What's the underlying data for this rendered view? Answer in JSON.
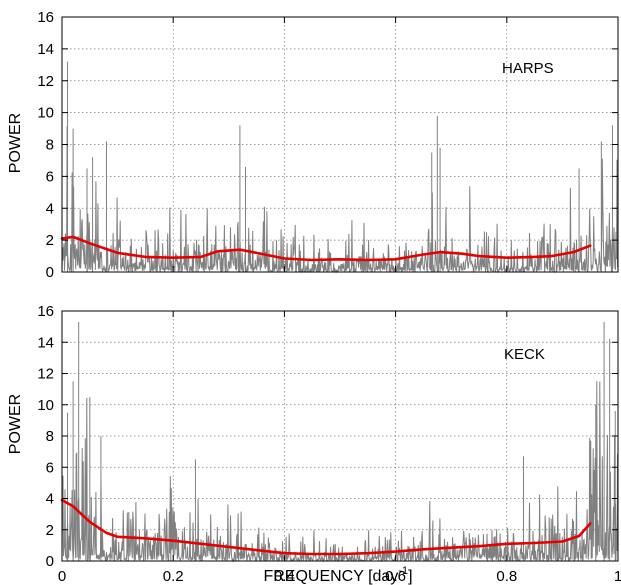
{
  "colors": {
    "periodogram": "#808080",
    "smoothed": "#e60000"
  },
  "chart_data": [
    {
      "type": "line",
      "panel_label": "HARPS",
      "xlabel": "",
      "ylabel": "POWER",
      "xlim": [
        0,
        1
      ],
      "ylim": [
        0,
        16
      ],
      "xticks": [
        0,
        0.2,
        0.4,
        0.6,
        0.8,
        1
      ],
      "yticks": [
        0,
        2,
        4,
        6,
        8,
        10,
        12,
        14,
        16
      ],
      "grid": true,
      "series": [
        {
          "role": "periodogram",
          "style": "gray line, dense noise",
          "x_range": [
            0,
            1
          ],
          "peaks": [
            {
              "x": 0.0,
              "y": 12.3
            },
            {
              "x": 0.01,
              "y": 13.2
            },
            {
              "x": 0.02,
              "y": 9.0
            },
            {
              "x": 0.045,
              "y": 6.5
            },
            {
              "x": 0.055,
              "y": 7.2
            },
            {
              "x": 0.08,
              "y": 8.2
            },
            {
              "x": 0.32,
              "y": 9.2
            },
            {
              "x": 0.33,
              "y": 6.6
            },
            {
              "x": 0.675,
              "y": 9.8
            },
            {
              "x": 0.665,
              "y": 7.5
            },
            {
              "x": 0.68,
              "y": 7.8
            },
            {
              "x": 0.93,
              "y": 6.5
            },
            {
              "x": 0.97,
              "y": 8.2
            },
            {
              "x": 0.99,
              "y": 9.2
            }
          ]
        },
        {
          "role": "smoothed",
          "style": "red line",
          "x": [
            0,
            0.02,
            0.05,
            0.1,
            0.15,
            0.2,
            0.25,
            0.28,
            0.32,
            0.35,
            0.4,
            0.45,
            0.5,
            0.55,
            0.6,
            0.65,
            0.68,
            0.72,
            0.75,
            0.8,
            0.85,
            0.88,
            0.92,
            0.95
          ],
          "y": [
            2.1,
            2.2,
            1.8,
            1.2,
            0.95,
            0.9,
            0.95,
            1.3,
            1.4,
            1.2,
            0.85,
            0.75,
            0.8,
            0.75,
            0.8,
            1.1,
            1.25,
            1.15,
            1.0,
            0.9,
            0.95,
            1.0,
            1.25,
            1.65
          ]
        }
      ]
    },
    {
      "type": "line",
      "panel_label": "KECK",
      "xlabel": "FREQUENCY [day",
      "xlabel_superscript": "-1",
      "xlabel_suffix": "]",
      "ylabel": "POWER",
      "xlim": [
        0,
        1
      ],
      "ylim": [
        0,
        16
      ],
      "xticks": [
        0,
        0.2,
        0.4,
        0.6,
        0.8,
        1
      ],
      "yticks": [
        0,
        2,
        4,
        6,
        8,
        10,
        12,
        14,
        16
      ],
      "grid": true,
      "series": [
        {
          "role": "periodogram",
          "style": "gray line, dense noise",
          "x_range": [
            0,
            1
          ],
          "peaks": [
            {
              "x": 0.0,
              "y": 14.5
            },
            {
              "x": 0.03,
              "y": 15.3
            },
            {
              "x": 0.02,
              "y": 11.5
            },
            {
              "x": 0.05,
              "y": 10.5
            },
            {
              "x": 0.01,
              "y": 9.5
            },
            {
              "x": 0.07,
              "y": 8.0
            },
            {
              "x": 0.24,
              "y": 6.5
            },
            {
              "x": 0.83,
              "y": 6.7
            },
            {
              "x": 0.96,
              "y": 10.0
            },
            {
              "x": 0.975,
              "y": 15.3
            },
            {
              "x": 0.985,
              "y": 14.2
            },
            {
              "x": 0.995,
              "y": 9.6
            }
          ]
        },
        {
          "role": "smoothed",
          "style": "red line",
          "x": [
            0,
            0.02,
            0.05,
            0.08,
            0.1,
            0.15,
            0.2,
            0.25,
            0.3,
            0.35,
            0.4,
            0.45,
            0.5,
            0.55,
            0.6,
            0.65,
            0.7,
            0.75,
            0.8,
            0.85,
            0.9,
            0.93,
            0.95
          ],
          "y": [
            3.9,
            3.5,
            2.5,
            1.8,
            1.55,
            1.45,
            1.3,
            1.1,
            0.9,
            0.7,
            0.5,
            0.45,
            0.45,
            0.5,
            0.6,
            0.75,
            0.85,
            0.95,
            1.1,
            1.15,
            1.25,
            1.6,
            2.4
          ]
        }
      ]
    }
  ]
}
